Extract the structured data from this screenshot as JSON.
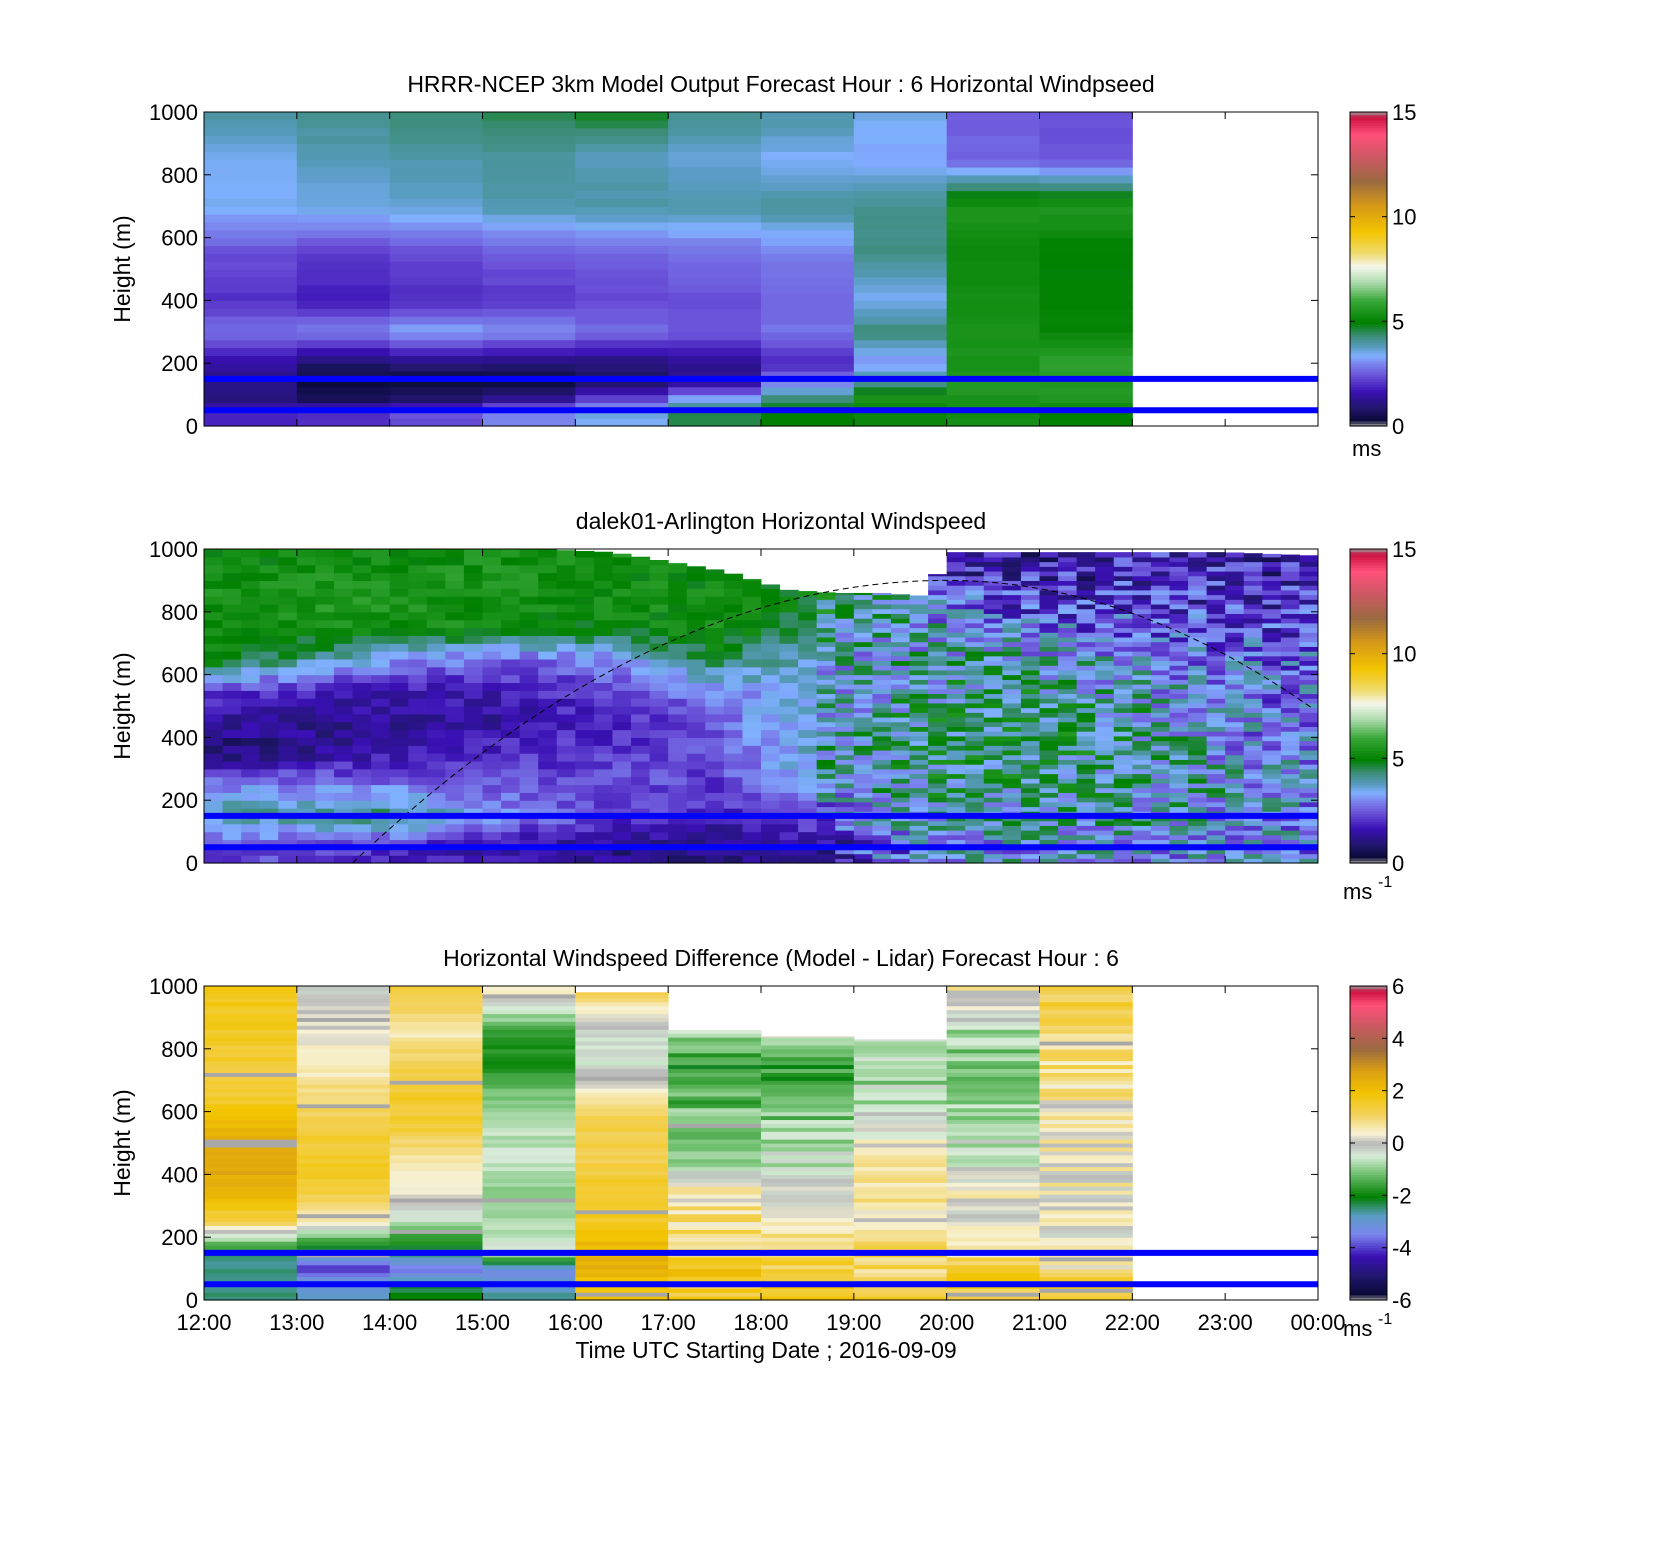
{
  "chart_data": [
    {
      "type": "heatmap",
      "title": "HRRR-NCEP 3km Model Output   Forecast Hour : 6 Horizontal Windpseed",
      "ylabel": "Height (m)",
      "ylim": [
        0,
        1000
      ],
      "yticks": [
        "0",
        "200",
        "400",
        "600",
        "800",
        "1000"
      ],
      "xlim": [
        12,
        24
      ],
      "colorbar": {
        "range": [
          0,
          15
        ],
        "ticks": [
          "0",
          "5",
          "10",
          "15"
        ],
        "unit_label": "ms",
        "unit_sup": ""
      },
      "x_start": [
        12,
        13,
        14,
        15,
        16,
        17,
        18,
        19,
        20,
        21
      ],
      "heights": [
        40,
        90,
        140,
        200,
        300,
        400,
        550,
        700,
        850,
        1000
      ],
      "values": [
        [
          1.8,
          1.0,
          1.2,
          1.4,
          2.8,
          2.0,
          2.4,
          3.4,
          3.5,
          4.0
        ],
        [
          2.0,
          0.6,
          0.4,
          0.8,
          3.0,
          1.8,
          2.2,
          3.6,
          3.8,
          4.2
        ],
        [
          2.4,
          0.8,
          0.3,
          1.0,
          3.3,
          2.0,
          2.3,
          3.7,
          3.9,
          4.4
        ],
        [
          3.0,
          1.2,
          0.4,
          0.9,
          3.1,
          2.1,
          2.5,
          3.9,
          4.0,
          4.6
        ],
        [
          3.5,
          2.2,
          0.8,
          1.0,
          2.7,
          2.3,
          2.6,
          4.0,
          3.8,
          4.8
        ],
        [
          4.6,
          3.2,
          1.3,
          1.2,
          2.5,
          2.4,
          2.7,
          4.0,
          3.6,
          4.2
        ],
        [
          5.0,
          4.3,
          3.0,
          1.8,
          2.8,
          2.6,
          2.9,
          4.1,
          3.4,
          4.0
        ],
        [
          5.2,
          5.4,
          4.2,
          3.1,
          4.3,
          3.4,
          4.2,
          4.2,
          3.3,
          3.5
        ],
        [
          5.3,
          5.5,
          5.6,
          5.4,
          5.5,
          5.3,
          5.2,
          5.5,
          2.6,
          2.6
        ],
        [
          5.0,
          5.6,
          5.6,
          5.8,
          5.1,
          5.0,
          4.9,
          5.6,
          2.4,
          2.4
        ]
      ],
      "reference_lines_m": [
        150,
        50
      ]
    },
    {
      "type": "heatmap",
      "title": "dalek01-Arlington  Horizontal Windspeed",
      "ylabel": "Height (m)",
      "ylim": [
        0,
        1000
      ],
      "yticks": [
        "0",
        "200",
        "400",
        "600",
        "800",
        "1000"
      ],
      "xlim": [
        12,
        24
      ],
      "colorbar": {
        "range": [
          0,
          15
        ],
        "ticks": [
          "0",
          "5",
          "10",
          "15"
        ],
        "unit_label": "ms",
        "unit_sup": "-1"
      },
      "data_x_end": 23.9,
      "profile_stations": [
        12.0,
        14.0,
        15.5,
        16.5,
        17.5,
        18.5,
        19.3,
        20.0,
        21.0,
        22.0,
        23.0,
        23.9
      ],
      "layer_heights": [
        50,
        150,
        250,
        350,
        450,
        550,
        650,
        750,
        850,
        950
      ],
      "profile_values": [
        [
          2.4,
          4.0,
          3.0,
          0.8,
          1.4,
          2.2,
          5.2,
          5.3,
          5.4,
          5.2
        ],
        [
          2.0,
          4.4,
          2.8,
          1.6,
          1.2,
          1.6,
          3.2,
          5.4,
          5.5,
          5.3
        ],
        [
          1.4,
          2.8,
          2.4,
          2.0,
          1.6,
          1.8,
          2.6,
          5.2,
          5.4,
          5.4
        ],
        [
          1.2,
          2.2,
          2.4,
          2.1,
          1.9,
          2.4,
          3.2,
          5.0,
          5.3,
          5.3
        ],
        [
          1.0,
          1.8,
          2.2,
          2.4,
          2.6,
          3.0,
          4.6,
          5.4,
          5.2,
          5.0
        ],
        [
          1.2,
          2.6,
          3.3,
          3.6,
          3.7,
          3.4,
          3.6,
          4.4,
          5.0,
          4.8
        ],
        [
          2.6,
          3.5,
          3.8,
          4.2,
          4.0,
          3.8,
          3.6,
          3.9,
          4.1,
          3.4
        ],
        [
          3.2,
          4.0,
          4.4,
          4.2,
          4.4,
          4.1,
          3.8,
          3.4,
          2.6,
          1.8
        ],
        [
          3.4,
          3.8,
          4.2,
          4.5,
          4.6,
          4.3,
          3.6,
          2.8,
          2.0,
          1.6
        ],
        [
          3.4,
          3.8,
          4.0,
          4.1,
          4.0,
          3.7,
          3.2,
          2.6,
          2.1,
          1.8
        ],
        [
          3.2,
          3.5,
          3.6,
          3.4,
          3.2,
          3.0,
          2.8,
          2.4,
          2.0,
          1.8
        ],
        [
          3.0,
          3.2,
          3.3,
          3.1,
          3.0,
          2.9,
          2.7,
          2.3,
          2.0,
          1.8
        ]
      ],
      "missing_top_boundary": [
        [
          12.0,
          1000
        ],
        [
          15.6,
          1000
        ],
        [
          16.4,
          990
        ],
        [
          17.0,
          960
        ],
        [
          17.6,
          930
        ],
        [
          18.3,
          870
        ],
        [
          18.8,
          860
        ],
        [
          19.3,
          860
        ],
        [
          19.8,
          850
        ],
        [
          20.0,
          990
        ],
        [
          23.0,
          990
        ],
        [
          23.9,
          980
        ]
      ],
      "arc": {
        "start": [
          13.6,
          0
        ],
        "peak": [
          20.0,
          900
        ],
        "end": [
          24.0,
          480
        ]
      },
      "reference_lines_m": [
        150,
        50
      ]
    },
    {
      "type": "heatmap",
      "title": "Horizontal Windspeed Difference (Model - Lidar) Forecast Hour : 6",
      "ylabel": "Height (m)",
      "xlabel": "Time UTC  Starting Date ; 2016-09-09",
      "ylim": [
        0,
        1000
      ],
      "yticks": [
        "0",
        "200",
        "400",
        "600",
        "800",
        "1000"
      ],
      "xlim": [
        12,
        24
      ],
      "xticks": [
        "12:00",
        "13:00",
        "14:00",
        "15:00",
        "16:00",
        "17:00",
        "18:00",
        "19:00",
        "20:00",
        "21:00",
        "22:00",
        "23:00",
        "00:00"
      ],
      "colorbar": {
        "range": [
          -6,
          6
        ],
        "ticks": [
          "-6",
          "-4",
          "-2",
          "0",
          "2",
          "4",
          "6"
        ],
        "unit_label": "ms",
        "unit_sup": "-1"
      },
      "x_start": [
        12,
        13,
        14,
        15,
        16,
        17,
        18,
        19,
        20,
        21
      ],
      "column_tops": [
        1000,
        1000,
        1000,
        1000,
        980,
        860,
        840,
        830,
        1000,
        1000
      ],
      "heights": [
        50,
        100,
        150,
        250,
        350,
        450,
        550,
        650,
        750,
        850,
        1000
      ],
      "values": [
        [
          -2.5,
          -2.6,
          -2.3,
          1.2,
          2.4,
          2.6,
          2.2,
          1.4,
          1.5,
          1.6,
          1.7
        ],
        [
          -2.8,
          -4.0,
          -2.7,
          0.4,
          1.4,
          1.6,
          1.3,
          1.0,
          0.4,
          0.3,
          -0.2
        ],
        [
          -2.2,
          -3.6,
          -2.5,
          -0.6,
          0.3,
          0.7,
          1.4,
          1.5,
          1.3,
          0.6,
          1.5
        ],
        [
          -2.7,
          -3.4,
          -0.3,
          -0.8,
          -0.9,
          -0.6,
          -0.7,
          -1.1,
          -1.9,
          -1.7,
          0.6
        ],
        [
          1.9,
          2.4,
          2.3,
          1.6,
          1.6,
          1.2,
          1.3,
          0.7,
          -0.4,
          -0.4,
          1.4
        ],
        [
          1.5,
          2.0,
          1.2,
          0.8,
          0.4,
          -0.9,
          -1.0,
          -1.4,
          -1.8,
          -0.6,
          0
        ],
        [
          1.6,
          1.4,
          0.9,
          0.3,
          0.0,
          -0.6,
          -0.9,
          -1.4,
          -1.8,
          0,
          0
        ],
        [
          1.2,
          1.0,
          1.0,
          0.5,
          0.7,
          0.5,
          -0.3,
          -0.7,
          -0.9,
          -0.7,
          0
        ],
        [
          1.4,
          1.3,
          0.8,
          0.2,
          0.2,
          -0.3,
          -0.8,
          -1.0,
          -1.1,
          -0.8,
          0.7
        ],
        [
          1.5,
          0.6,
          0.3,
          0.2,
          0.3,
          0.4,
          0.3,
          0.6,
          0.9,
          1.1,
          1.3
        ]
      ],
      "reference_lines_m": [
        150,
        50
      ]
    }
  ]
}
